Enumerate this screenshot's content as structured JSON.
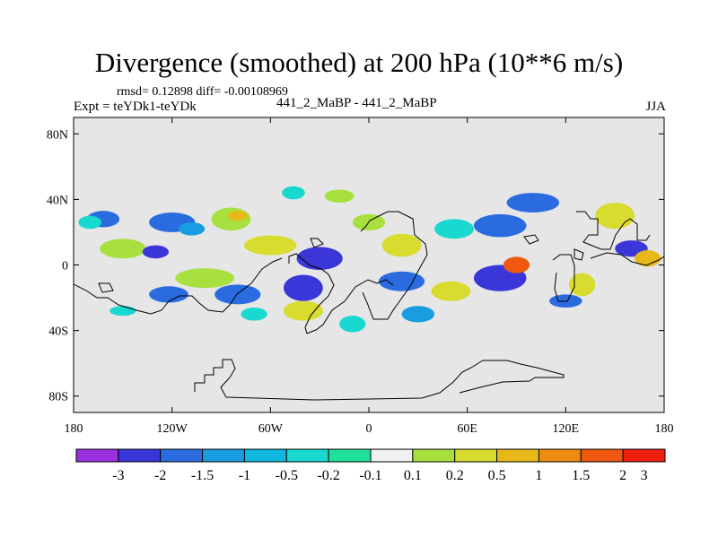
{
  "chart_data": {
    "type": "heatmap",
    "title": "Divergence (smoothed) at 200 hPa (10**6 m/s)",
    "stats": "rmsd= 0.12898 diff= -0.00108969",
    "left_label": "Expt = teYDk1-teYDk",
    "center_label": "441_2_MaBP - 441_2_MaBP",
    "season": "JJA",
    "x_ticks": [
      {
        "value": -180,
        "label": "180"
      },
      {
        "value": -120,
        "label": "120W"
      },
      {
        "value": -60,
        "label": "60W"
      },
      {
        "value": 0,
        "label": "0"
      },
      {
        "value": 60,
        "label": "60E"
      },
      {
        "value": 120,
        "label": "120E"
      },
      {
        "value": 180,
        "label": "180"
      }
    ],
    "y_ticks": [
      {
        "value": 80,
        "label": "80N"
      },
      {
        "value": 40,
        "label": "40N"
      },
      {
        "value": 0,
        "label": "0"
      },
      {
        "value": -40,
        "label": "40S"
      },
      {
        "value": -80,
        "label": "80S"
      }
    ],
    "xlim": [
      -180,
      180
    ],
    "ylim": [
      -90,
      90
    ],
    "colorbar": {
      "levels": [
        "-3",
        "-2",
        "-1.5",
        "-1",
        "-0.5",
        "-0.2",
        "-0.1",
        "0.1",
        "0.2",
        "0.5",
        "1",
        "1.5",
        "2",
        "3"
      ],
      "colors": [
        "#9a30e0",
        "#3a36d8",
        "#2a6ce0",
        "#1a9ce0",
        "#10b8e0",
        "#18d8d0",
        "#20e09a",
        "#f0f0f0",
        "#a8e040",
        "#d8dc2e",
        "#e8b818",
        "#ee8c10",
        "#ee5810",
        "#ee2010"
      ]
    },
    "contour_patches": [
      {
        "lon": -162,
        "lat": 28,
        "rx": 10,
        "ry": 5,
        "level": 2
      },
      {
        "lon": -170,
        "lat": 26,
        "rx": 7,
        "ry": 4,
        "level": 5
      },
      {
        "lon": -150,
        "lat": 10,
        "rx": 14,
        "ry": 6,
        "level": 8
      },
      {
        "lon": -120,
        "lat": 26,
        "rx": 14,
        "ry": 6,
        "level": 2
      },
      {
        "lon": -108,
        "lat": 22,
        "rx": 8,
        "ry": 4,
        "level": 3
      },
      {
        "lon": -84,
        "lat": 28,
        "rx": 12,
        "ry": 7,
        "level": 8
      },
      {
        "lon": -80,
        "lat": 30,
        "rx": 6,
        "ry": 3,
        "level": 10
      },
      {
        "lon": -46,
        "lat": 44,
        "rx": 7,
        "ry": 4,
        "level": 5
      },
      {
        "lon": -18,
        "lat": 42,
        "rx": 9,
        "ry": 4,
        "level": 8
      },
      {
        "lon": -60,
        "lat": 12,
        "rx": 16,
        "ry": 6,
        "level": 9
      },
      {
        "lon": -30,
        "lat": 4,
        "rx": 14,
        "ry": 7,
        "level": 1
      },
      {
        "lon": -100,
        "lat": -8,
        "rx": 18,
        "ry": 6,
        "level": 8
      },
      {
        "lon": -122,
        "lat": -18,
        "rx": 12,
        "ry": 5,
        "level": 2
      },
      {
        "lon": -80,
        "lat": -18,
        "rx": 14,
        "ry": 6,
        "level": 2
      },
      {
        "lon": -40,
        "lat": -14,
        "rx": 12,
        "ry": 8,
        "level": 1
      },
      {
        "lon": -40,
        "lat": -28,
        "rx": 12,
        "ry": 6,
        "level": 9
      },
      {
        "lon": -70,
        "lat": -30,
        "rx": 8,
        "ry": 4,
        "level": 5
      },
      {
        "lon": 20,
        "lat": 12,
        "rx": 12,
        "ry": 7,
        "level": 9
      },
      {
        "lon": 52,
        "lat": 22,
        "rx": 12,
        "ry": 6,
        "level": 5
      },
      {
        "lon": 80,
        "lat": 24,
        "rx": 16,
        "ry": 7,
        "level": 2
      },
      {
        "lon": 20,
        "lat": -10,
        "rx": 14,
        "ry": 6,
        "level": 2
      },
      {
        "lon": 50,
        "lat": -16,
        "rx": 12,
        "ry": 6,
        "level": 9
      },
      {
        "lon": 80,
        "lat": -8,
        "rx": 16,
        "ry": 8,
        "level": 1
      },
      {
        "lon": 90,
        "lat": 0,
        "rx": 8,
        "ry": 5,
        "level": 12
      },
      {
        "lon": 30,
        "lat": -30,
        "rx": 10,
        "ry": 5,
        "level": 3
      },
      {
        "lon": 100,
        "lat": 38,
        "rx": 16,
        "ry": 6,
        "level": 2
      },
      {
        "lon": 150,
        "lat": 30,
        "rx": 12,
        "ry": 8,
        "level": 9
      },
      {
        "lon": 160,
        "lat": 10,
        "rx": 10,
        "ry": 5,
        "level": 1
      },
      {
        "lon": 130,
        "lat": -12,
        "rx": 8,
        "ry": 7,
        "level": 9
      },
      {
        "lon": 170,
        "lat": 4,
        "rx": 8,
        "ry": 5,
        "level": 10
      },
      {
        "lon": -10,
        "lat": -36,
        "rx": 8,
        "ry": 5,
        "level": 5
      },
      {
        "lon": 120,
        "lat": -22,
        "rx": 10,
        "ry": 4,
        "level": 2
      },
      {
        "lon": -150,
        "lat": -28,
        "rx": 8,
        "ry": 3,
        "level": 5
      },
      {
        "lon": 0,
        "lat": 26,
        "rx": 10,
        "ry": 5,
        "level": 8
      },
      {
        "lon": -130,
        "lat": 8,
        "rx": 8,
        "ry": 4,
        "level": 1
      }
    ]
  }
}
